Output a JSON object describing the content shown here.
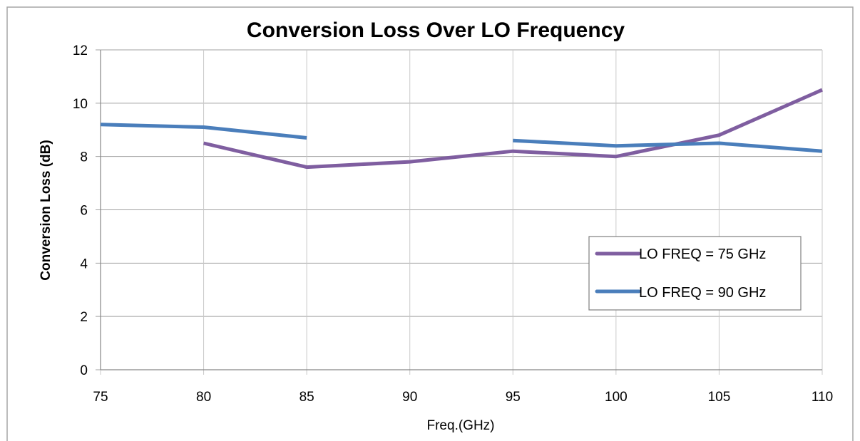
{
  "chart_data": {
    "type": "line",
    "title": "Conversion Loss Over LO Frequency",
    "xlabel": "Freq.(GHz)",
    "ylabel": "Conversion Loss (dB)",
    "xlim": [
      75,
      110
    ],
    "ylim": [
      0,
      12
    ],
    "x_ticks": [
      "75",
      "80",
      "85",
      "90",
      "95",
      "100",
      "105",
      "110"
    ],
    "y_ticks": [
      "0",
      "2",
      "4",
      "6",
      "8",
      "10",
      "12"
    ],
    "grid": true,
    "legend_position": "right-middle",
    "series": [
      {
        "name": "LO FREQ = 75 GHz",
        "color": "#7F5EA0",
        "segments": [
          [
            [
              80,
              8.5
            ],
            [
              85,
              7.6
            ],
            [
              90,
              7.8
            ],
            [
              95,
              8.2
            ],
            [
              100,
              8.0
            ],
            [
              105,
              8.8
            ],
            [
              110,
              10.5
            ]
          ]
        ]
      },
      {
        "name": "LO FREQ = 90 GHz",
        "color": "#4A7EBB",
        "segments": [
          [
            [
              75,
              9.2
            ],
            [
              80,
              9.1
            ],
            [
              85,
              8.7
            ]
          ],
          [
            [
              95,
              8.6
            ],
            [
              100,
              8.4
            ],
            [
              105,
              8.5
            ],
            [
              110,
              8.2
            ]
          ]
        ]
      }
    ]
  }
}
